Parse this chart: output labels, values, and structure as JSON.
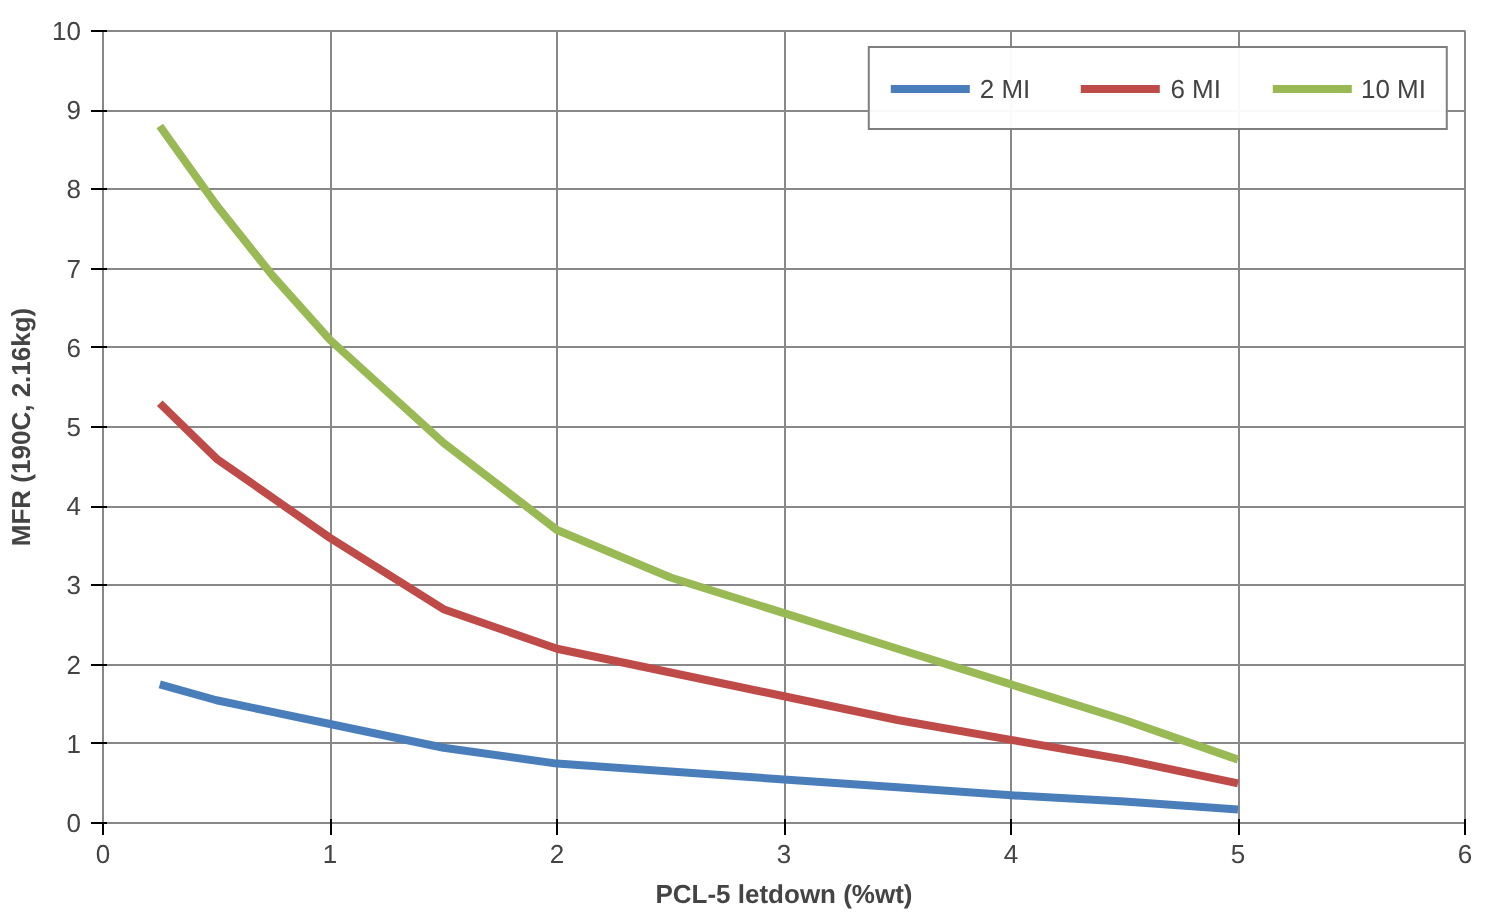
{
  "chart_data": {
    "type": "line",
    "xlabel": "PCL-5 letdown (%wt)",
    "ylabel": "MFR (190C, 2.16kg)",
    "xlim": [
      0,
      6
    ],
    "xticks": [
      0,
      1,
      2,
      3,
      4,
      5,
      6
    ],
    "ylim": [
      0,
      10
    ],
    "yticks": [
      0,
      1,
      2,
      3,
      4,
      5,
      6,
      7,
      8,
      9,
      10
    ],
    "grid": true,
    "legend": "top right",
    "marker": "none",
    "line_style": "solid",
    "x": [
      0.25,
      0.5,
      0.75,
      1,
      1.5,
      2,
      2.5,
      3,
      3.5,
      4,
      4.5,
      5
    ],
    "series": [
      {
        "name": "2 MI",
        "color": "#4a7ebb",
        "values": [
          1.75,
          1.55,
          1.4,
          1.25,
          0.95,
          0.75,
          0.65,
          0.55,
          0.45,
          0.35,
          0.27,
          0.17
        ]
      },
      {
        "name": "6 MI",
        "color": "#be4b48",
        "values": [
          5.3,
          4.6,
          4.1,
          3.6,
          2.7,
          2.2,
          1.9,
          1.6,
          1.3,
          1.05,
          0.8,
          0.5
        ]
      },
      {
        "name": "10 MI",
        "color": "#98b954",
        "values": [
          8.8,
          7.8,
          6.9,
          6.1,
          4.8,
          3.7,
          3.1,
          2.65,
          2.2,
          1.75,
          1.3,
          0.8
        ]
      }
    ]
  }
}
